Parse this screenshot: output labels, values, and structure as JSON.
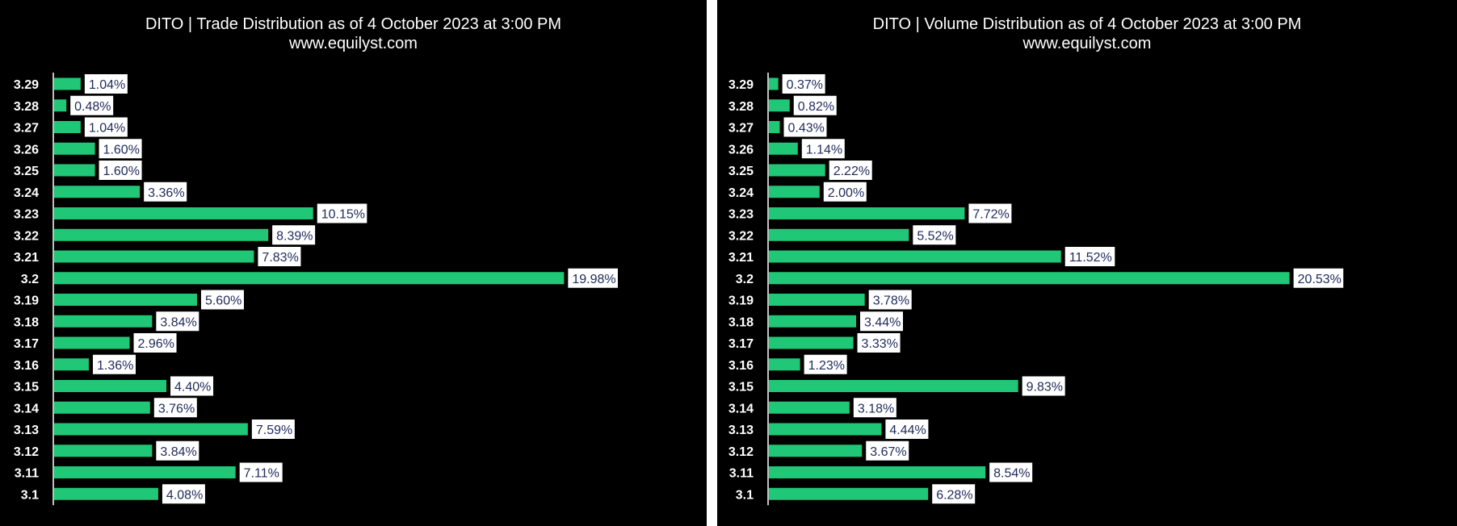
{
  "colors": {
    "background": "#000000",
    "bar": "#1fc777",
    "axis": "#ffffff",
    "label_box": "#ffffff",
    "label_text": "#1f2a5a",
    "title": "#ffffff"
  },
  "chart_data": [
    {
      "type": "bar",
      "orientation": "horizontal",
      "title": "DITO | Trade Distribution as of 4 October 2023 at 3:00 PM",
      "subtitle": "www.equilyst.com",
      "categories": [
        "3.29",
        "3.28",
        "3.27",
        "3.26",
        "3.25",
        "3.24",
        "3.23",
        "3.22",
        "3.21",
        "3.2",
        "3.19",
        "3.18",
        "3.17",
        "3.16",
        "3.15",
        "3.14",
        "3.13",
        "3.12",
        "3.11",
        "3.1"
      ],
      "values": [
        1.04,
        0.48,
        1.04,
        1.6,
        1.6,
        3.36,
        10.15,
        8.39,
        7.83,
        19.98,
        5.6,
        3.84,
        2.96,
        1.36,
        4.4,
        3.76,
        7.59,
        3.84,
        7.11,
        4.08
      ],
      "labels": [
        "1.04%",
        "0.48%",
        "1.04%",
        "1.60%",
        "1.60%",
        "3.36%",
        "10.15%",
        "8.39%",
        "7.83%",
        "19.98%",
        "5.60%",
        "3.84%",
        "2.96%",
        "1.36%",
        "4.40%",
        "3.76%",
        "7.59%",
        "3.84%",
        "7.11%",
        "4.08%"
      ],
      "xlim": [
        0,
        25
      ],
      "grid": false,
      "legend": "none"
    },
    {
      "type": "bar",
      "orientation": "horizontal",
      "title": "DITO | Volume Distribution as of 4 October 2023 at 3:00 PM",
      "subtitle": "www.equilyst.com",
      "categories": [
        "3.29",
        "3.28",
        "3.27",
        "3.26",
        "3.25",
        "3.24",
        "3.23",
        "3.22",
        "3.21",
        "3.2",
        "3.19",
        "3.18",
        "3.17",
        "3.16",
        "3.15",
        "3.14",
        "3.13",
        "3.12",
        "3.11",
        "3.1"
      ],
      "values": [
        0.37,
        0.82,
        0.43,
        1.14,
        2.22,
        2.0,
        7.72,
        5.52,
        11.52,
        20.53,
        3.78,
        3.44,
        3.33,
        1.23,
        9.83,
        3.18,
        4.44,
        3.67,
        8.54,
        6.28
      ],
      "labels": [
        "0.37%",
        "0.82%",
        "0.43%",
        "1.14%",
        "2.22%",
        "2.00%",
        "7.72%",
        "5.52%",
        "11.52%",
        "20.53%",
        "3.78%",
        "3.44%",
        "3.33%",
        "1.23%",
        "9.83%",
        "3.18%",
        "4.44%",
        "3.67%",
        "8.54%",
        "6.28%"
      ],
      "xlim": [
        0,
        25
      ],
      "grid": false,
      "legend": "none"
    }
  ]
}
